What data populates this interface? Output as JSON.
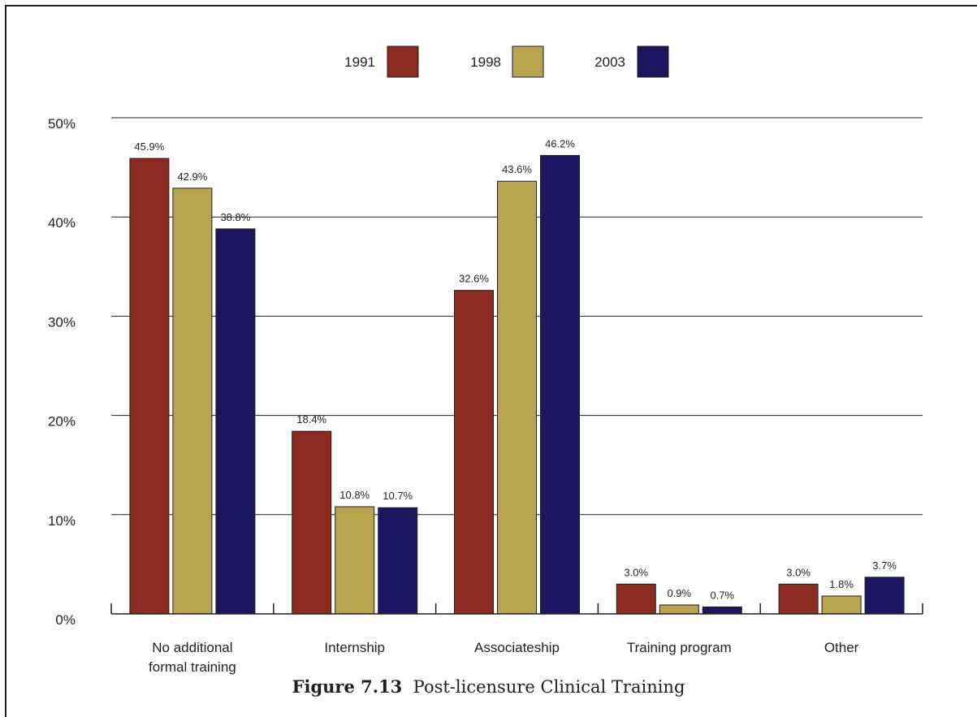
{
  "chart_data": {
    "type": "bar",
    "categories": [
      "No additional formal training",
      "Internship",
      "Associateship",
      "Training program",
      "Other"
    ],
    "category_lines": [
      [
        "No additional",
        "formal training"
      ],
      [
        "Internship"
      ],
      [
        "Associateship"
      ],
      [
        "Training program"
      ],
      [
        "Other"
      ]
    ],
    "series": [
      {
        "name": "1991",
        "color": "#8b2a1e",
        "values": [
          45.9,
          18.4,
          32.6,
          3.0,
          3.0
        ],
        "labels": [
          "45.9%",
          "18.4%",
          "32.6%",
          "3.0%",
          "3.0%"
        ]
      },
      {
        "name": "1998",
        "color": "#b8a44f",
        "values": [
          42.9,
          10.8,
          43.6,
          0.9,
          1.8
        ],
        "labels": [
          "42.9%",
          "10.8%",
          "43.6%",
          "0.9%",
          "1.8%"
        ]
      },
      {
        "name": "2003",
        "color": "#1c1660",
        "values": [
          38.8,
          10.7,
          46.2,
          0.7,
          3.7
        ],
        "labels": [
          "38.8%",
          "10.7%",
          "46.2%",
          "0.7%",
          "3.7%"
        ]
      }
    ],
    "yticks": [
      0,
      10,
      20,
      30,
      40,
      50
    ],
    "ytick_labels": [
      "0%",
      "10%",
      "20%",
      "30%",
      "40%",
      "50%"
    ],
    "ylim": [
      0,
      50
    ],
    "grid": true,
    "legend_position": "top-center"
  },
  "caption": {
    "number": "Figure 7.13",
    "text": "Post-licensure Clinical Training"
  }
}
